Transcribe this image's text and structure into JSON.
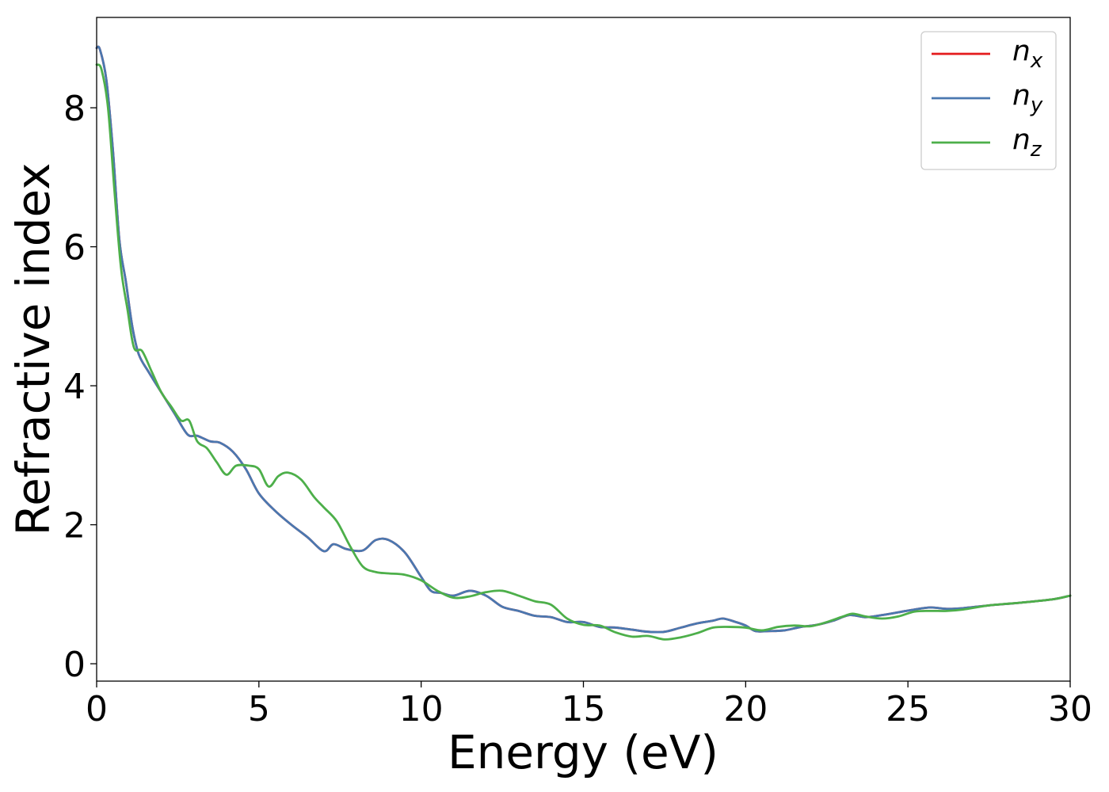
{
  "chart_data": {
    "type": "line",
    "xlabel": "Energy (eV)",
    "ylabel": "Refractive index",
    "xlim": [
      0,
      30
    ],
    "ylim": [
      -0.25,
      9.3
    ],
    "xticks": [
      0,
      5,
      10,
      15,
      20,
      25,
      30
    ],
    "yticks": [
      0,
      2,
      4,
      6,
      8
    ],
    "grid": false,
    "legend": "top-right",
    "colors": {
      "n_x": "#e41a1c",
      "n_y": "#4a78b0",
      "n_z": "#4daf4a"
    },
    "series": [
      {
        "name": "n_x",
        "base": "n",
        "sub": "x",
        "x": [
          0,
          0.1,
          0.3,
          0.5,
          0.7,
          0.9,
          1.1,
          1.3,
          1.6,
          2.0,
          2.4,
          2.8,
          3.1,
          3.5,
          3.8,
          4.2,
          4.6,
          5.0,
          5.5,
          6.0,
          6.5,
          7.0,
          7.3,
          7.7,
          8.2,
          8.6,
          9.0,
          9.5,
          10.0,
          10.3,
          10.6,
          11.0,
          11.5,
          12.0,
          12.5,
          13.0,
          13.5,
          14.0,
          14.5,
          15.0,
          15.5,
          16.0,
          16.5,
          17.0,
          17.5,
          18.0,
          18.5,
          19.0,
          19.3,
          19.7,
          20.0,
          20.3,
          20.7,
          21.2,
          21.7,
          22.2,
          22.7,
          23.2,
          23.7,
          24.2,
          24.7,
          25.2,
          25.7,
          26.2,
          26.7,
          27.5,
          28.5,
          29.5,
          30.0
        ],
        "values": [
          8.86,
          8.84,
          8.4,
          7.4,
          6.1,
          5.5,
          4.85,
          4.45,
          4.2,
          3.9,
          3.6,
          3.3,
          3.28,
          3.2,
          3.18,
          3.05,
          2.8,
          2.45,
          2.2,
          2.0,
          1.82,
          1.62,
          1.72,
          1.65,
          1.63,
          1.78,
          1.78,
          1.6,
          1.25,
          1.05,
          1.02,
          0.98,
          1.05,
          0.98,
          0.82,
          0.76,
          0.69,
          0.67,
          0.6,
          0.6,
          0.53,
          0.52,
          0.49,
          0.46,
          0.46,
          0.52,
          0.58,
          0.62,
          0.65,
          0.6,
          0.55,
          0.47,
          0.47,
          0.48,
          0.53,
          0.56,
          0.62,
          0.7,
          0.67,
          0.7,
          0.74,
          0.78,
          0.81,
          0.79,
          0.8,
          0.84,
          0.88,
          0.93,
          0.98
        ]
      },
      {
        "name": "n_y",
        "base": "n",
        "sub": "y",
        "x": [
          0,
          0.1,
          0.3,
          0.5,
          0.7,
          0.9,
          1.1,
          1.3,
          1.6,
          2.0,
          2.4,
          2.8,
          3.1,
          3.5,
          3.8,
          4.2,
          4.6,
          5.0,
          5.5,
          6.0,
          6.5,
          7.0,
          7.3,
          7.7,
          8.2,
          8.6,
          9.0,
          9.5,
          10.0,
          10.3,
          10.6,
          11.0,
          11.5,
          12.0,
          12.5,
          13.0,
          13.5,
          14.0,
          14.5,
          15.0,
          15.5,
          16.0,
          16.5,
          17.0,
          17.5,
          18.0,
          18.5,
          19.0,
          19.3,
          19.7,
          20.0,
          20.3,
          20.7,
          21.2,
          21.7,
          22.2,
          22.7,
          23.2,
          23.7,
          24.2,
          24.7,
          25.2,
          25.7,
          26.2,
          26.7,
          27.5,
          28.5,
          29.5,
          30.0
        ],
        "values": [
          8.86,
          8.84,
          8.4,
          7.4,
          6.1,
          5.5,
          4.85,
          4.45,
          4.2,
          3.9,
          3.6,
          3.3,
          3.28,
          3.2,
          3.18,
          3.05,
          2.8,
          2.45,
          2.2,
          2.0,
          1.82,
          1.62,
          1.72,
          1.65,
          1.63,
          1.78,
          1.78,
          1.6,
          1.25,
          1.05,
          1.02,
          0.98,
          1.05,
          0.98,
          0.82,
          0.76,
          0.69,
          0.67,
          0.6,
          0.6,
          0.53,
          0.52,
          0.49,
          0.46,
          0.46,
          0.52,
          0.58,
          0.62,
          0.65,
          0.6,
          0.55,
          0.47,
          0.47,
          0.48,
          0.53,
          0.56,
          0.62,
          0.7,
          0.67,
          0.7,
          0.74,
          0.78,
          0.81,
          0.79,
          0.8,
          0.84,
          0.88,
          0.93,
          0.98
        ]
      },
      {
        "name": "n_z",
        "base": "n",
        "sub": "z",
        "x": [
          0,
          0.15,
          0.35,
          0.55,
          0.75,
          0.95,
          1.15,
          1.4,
          1.7,
          2.0,
          2.3,
          2.6,
          2.85,
          3.1,
          3.4,
          3.7,
          4.0,
          4.3,
          4.7,
          5.0,
          5.3,
          5.6,
          5.9,
          6.3,
          6.7,
          7.0,
          7.4,
          7.8,
          8.2,
          8.6,
          9.0,
          9.5,
          10.0,
          10.5,
          11.0,
          11.5,
          12.0,
          12.5,
          13.0,
          13.5,
          14.0,
          14.5,
          15.0,
          15.5,
          16.0,
          16.5,
          17.0,
          17.5,
          18.0,
          18.5,
          19.0,
          19.5,
          20.0,
          20.5,
          21.0,
          21.5,
          22.0,
          22.5,
          23.0,
          23.3,
          23.7,
          24.2,
          24.7,
          25.2,
          25.7,
          26.2,
          26.7,
          27.5,
          28.5,
          29.5,
          30.0
        ],
        "values": [
          8.62,
          8.55,
          8.0,
          6.8,
          5.7,
          5.1,
          4.55,
          4.5,
          4.2,
          3.9,
          3.7,
          3.5,
          3.5,
          3.2,
          3.1,
          2.9,
          2.72,
          2.85,
          2.85,
          2.8,
          2.55,
          2.7,
          2.75,
          2.65,
          2.4,
          2.25,
          2.05,
          1.7,
          1.4,
          1.32,
          1.3,
          1.28,
          1.2,
          1.05,
          0.95,
          0.97,
          1.03,
          1.05,
          0.98,
          0.9,
          0.85,
          0.65,
          0.56,
          0.55,
          0.45,
          0.39,
          0.4,
          0.35,
          0.38,
          0.44,
          0.52,
          0.53,
          0.52,
          0.48,
          0.53,
          0.55,
          0.54,
          0.6,
          0.68,
          0.72,
          0.68,
          0.65,
          0.68,
          0.75,
          0.76,
          0.76,
          0.78,
          0.84,
          0.88,
          0.93,
          0.98
        ]
      }
    ]
  }
}
